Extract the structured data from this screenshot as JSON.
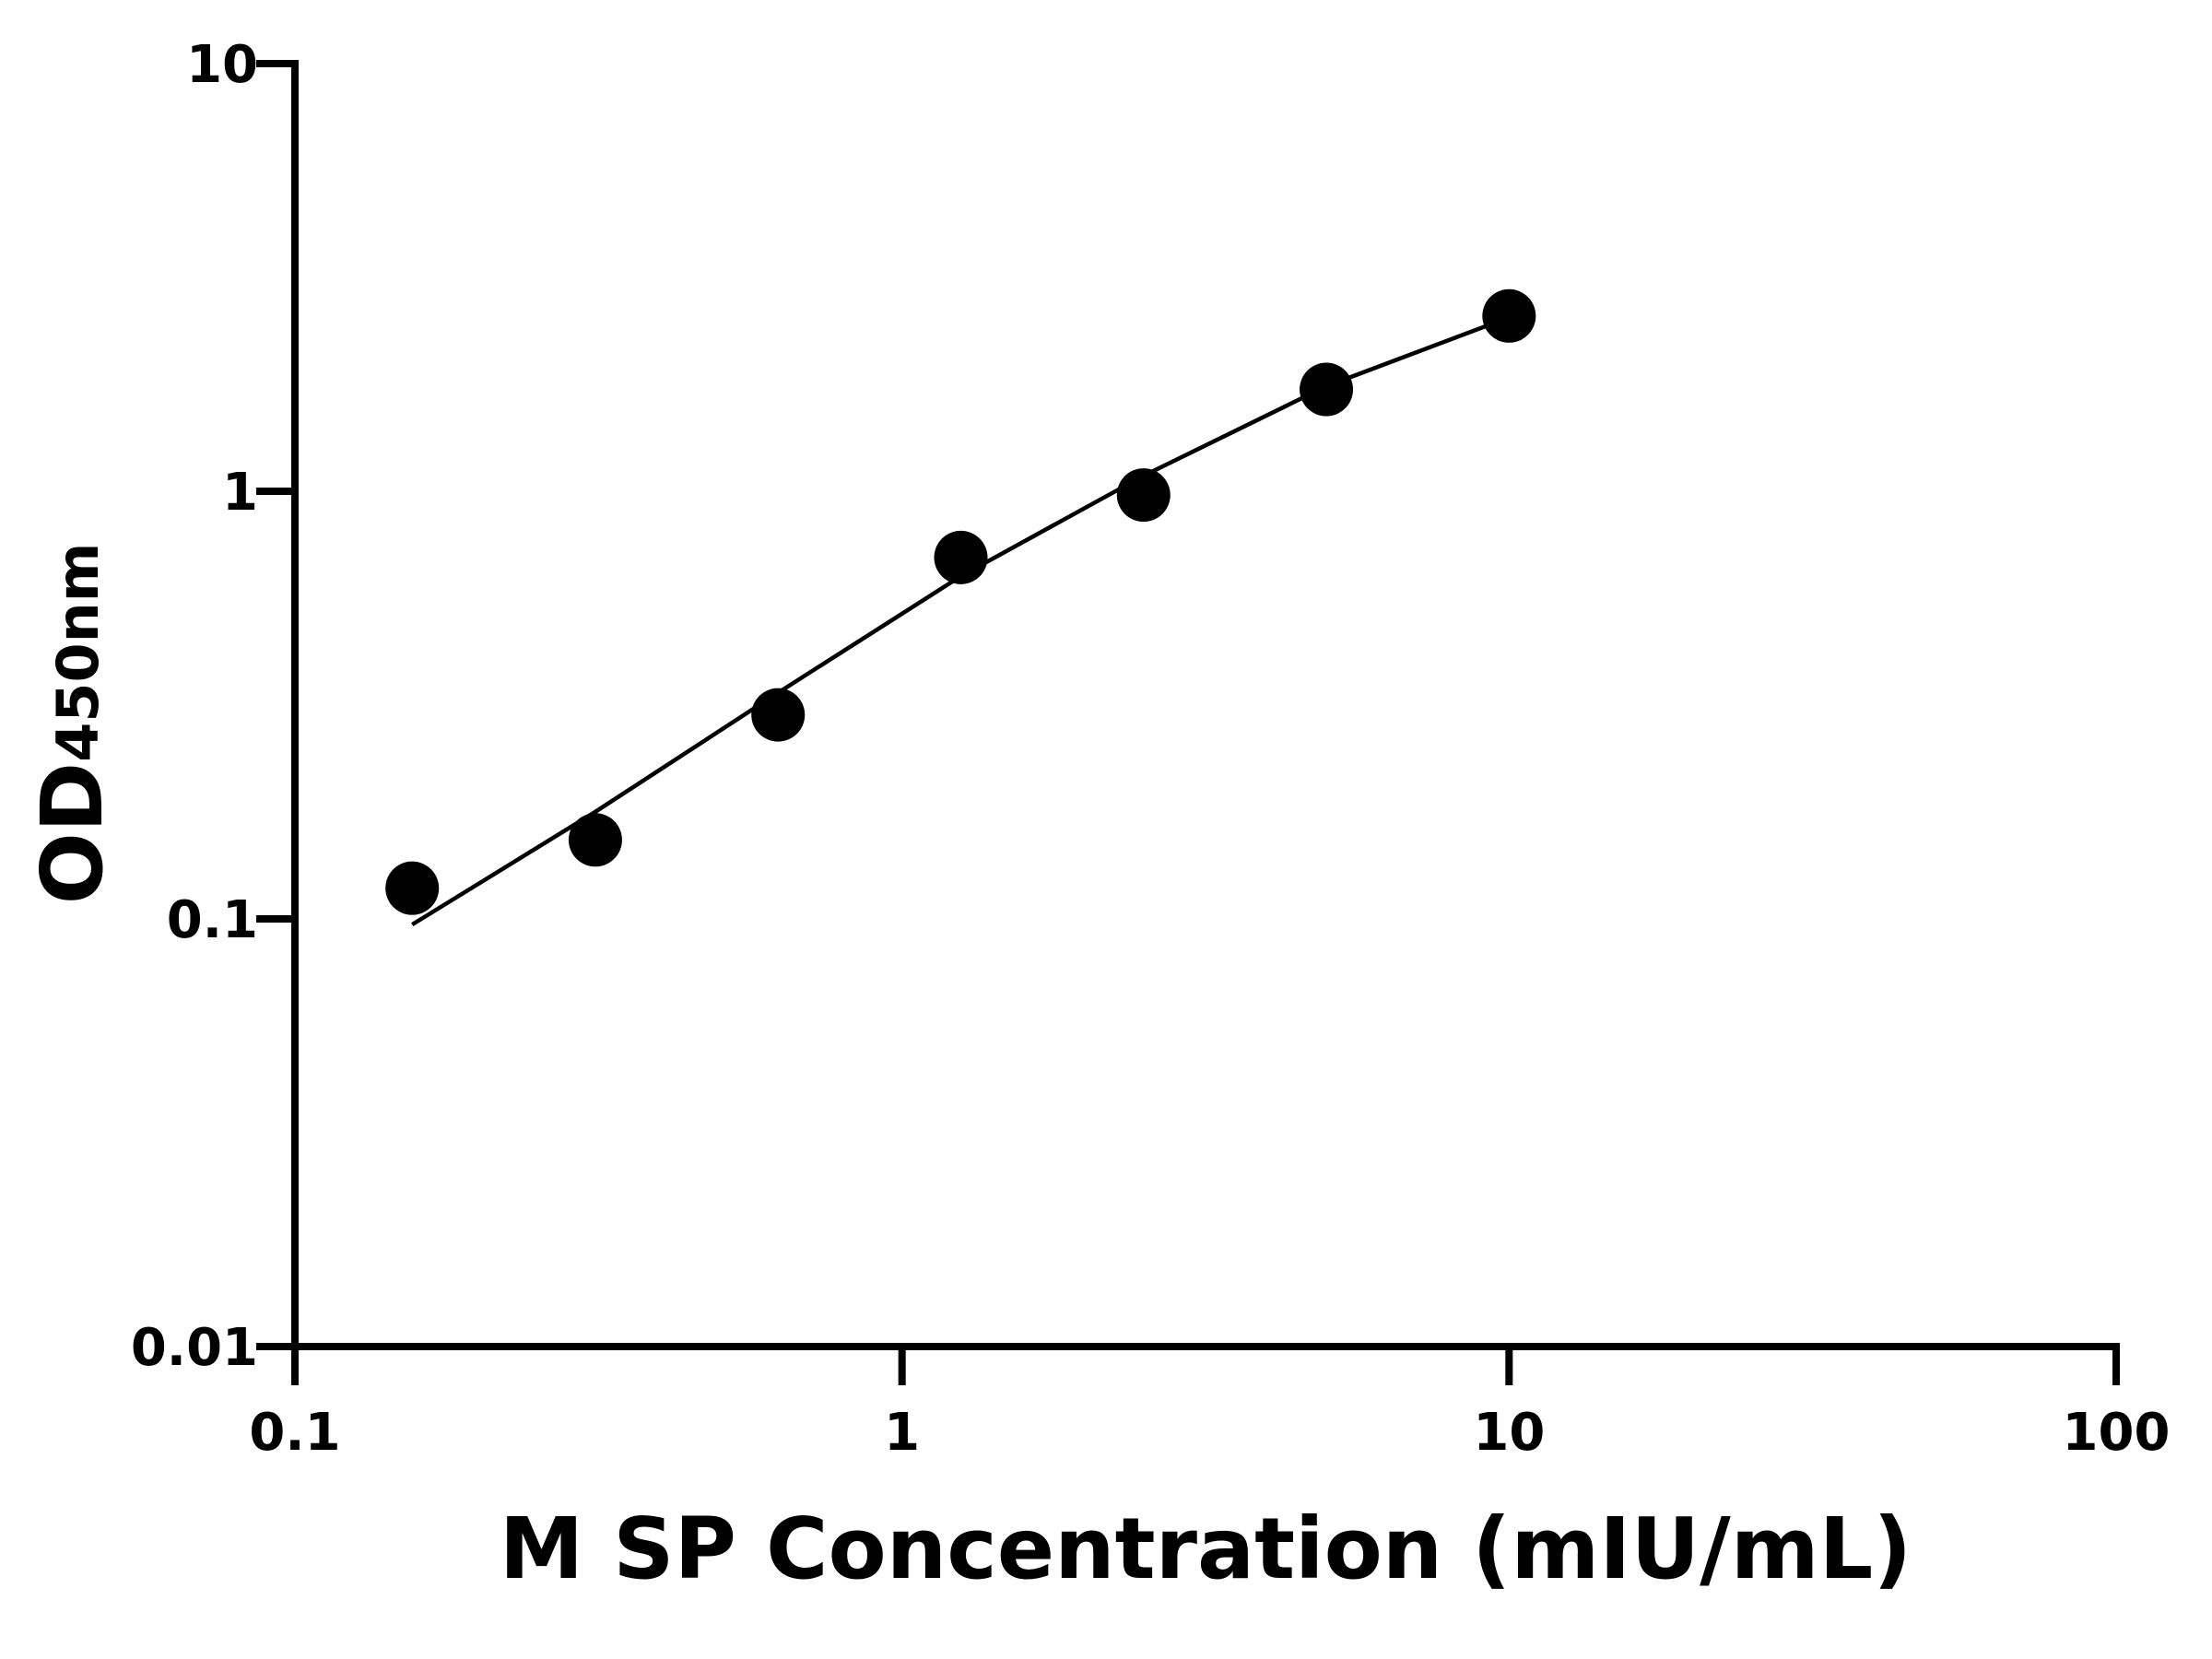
{
  "chart_data": {
    "type": "scatter",
    "xlabel": "M SP Concentration (mIU/mL)",
    "ylabel": {
      "text": "OD",
      "subscript": "450nm"
    },
    "xscale": "log",
    "yscale": "log",
    "xlim": [
      0.1,
      100
    ],
    "ylim": [
      0.01,
      10
    ],
    "xticks": [
      0.1,
      1,
      10,
      100
    ],
    "yticks": [
      0.01,
      0.1,
      1,
      10
    ],
    "x": [
      0.156,
      0.3125,
      0.625,
      1.25,
      2.5,
      5,
      10
    ],
    "series": [
      {
        "color": "#000000",
        "marker": "circle",
        "values": [
          0.118,
          0.153,
          0.3,
          0.7,
          0.98,
          1.73,
          2.57
        ]
      },
      {
        "color": "#000000",
        "marker": "line",
        "values": [
          0.097,
          0.178,
          0.338,
          0.633,
          1.087,
          1.76,
          2.55
        ]
      }
    ]
  }
}
